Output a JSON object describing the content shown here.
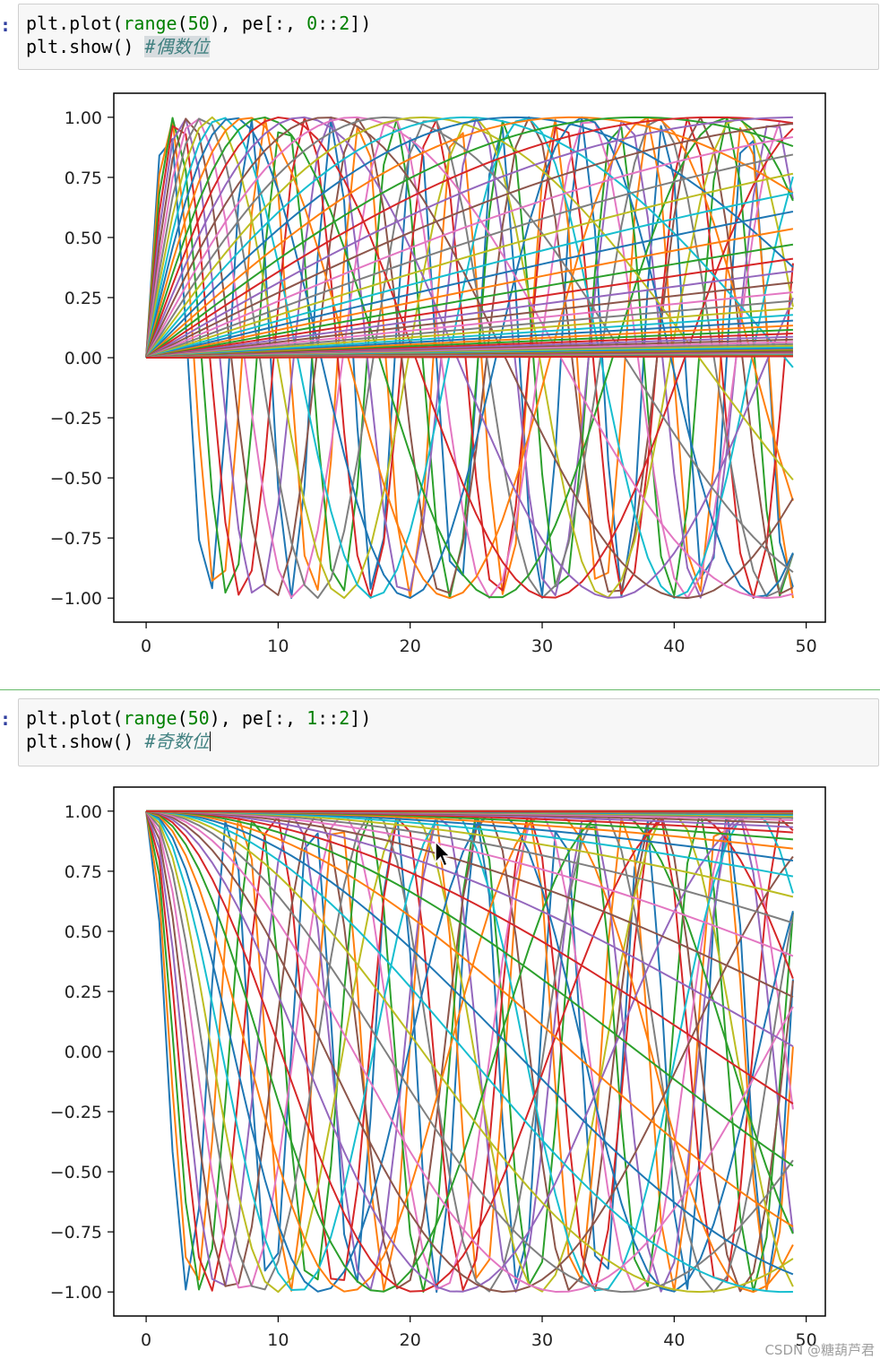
{
  "cells": [
    {
      "prompt": ":",
      "code": {
        "line1": {
          "p1": "plt.plot(",
          "builtin": "range",
          "p2": "(",
          "n1": "50",
          "p3": "), pe[:, ",
          "n2": "0",
          "p4": "::",
          "n3": "2",
          "p5": "])"
        },
        "line2": {
          "p1": "plt.show() ",
          "comment": "#偶数位"
        }
      }
    },
    {
      "prompt": ":",
      "code": {
        "line1": {
          "p1": "plt.plot(",
          "builtin": "range",
          "p2": "(",
          "n1": "50",
          "p3": "), pe[:, ",
          "n2": "1",
          "p4": "::",
          "n3": "2",
          "p5": "])"
        },
        "line2": {
          "p1": "plt.show() ",
          "comment": "#奇数位"
        }
      }
    }
  ],
  "chart_data": [
    {
      "type": "line",
      "function": "sin",
      "description_source": "pe[:, 0::2]",
      "x": {
        "start": 0,
        "end": 49,
        "step": 1
      },
      "series_count": 64,
      "xlim": [
        -2.45,
        51.45
      ],
      "ylim": [
        -1.1,
        1.1
      ],
      "xticks": [
        "0",
        "10",
        "20",
        "30",
        "40",
        "50"
      ],
      "yticks": [
        "1.00",
        "0.75",
        "0.50",
        "0.25",
        "0.00",
        "−0.25",
        "−0.50",
        "−0.75",
        "−1.00"
      ],
      "xtick_values": [
        0,
        10,
        20,
        30,
        40,
        50
      ],
      "ytick_values": [
        1,
        0.75,
        0.5,
        0.25,
        0,
        -0.25,
        -0.5,
        -0.75,
        -1
      ],
      "grid": false
    },
    {
      "type": "line",
      "function": "cos",
      "description_source": "pe[:, 1::2]",
      "x": {
        "start": 0,
        "end": 49,
        "step": 1
      },
      "series_count": 64,
      "xlim": [
        -2.45,
        51.45
      ],
      "ylim": [
        -1.1,
        1.1
      ],
      "xticks": [
        "0",
        "10",
        "20",
        "30",
        "40",
        "50"
      ],
      "yticks": [
        "1.00",
        "0.75",
        "0.50",
        "0.25",
        "0.00",
        "−0.25",
        "−0.50",
        "−0.75",
        "−1.00"
      ],
      "xtick_values": [
        0,
        10,
        20,
        30,
        40,
        50
      ],
      "ytick_values": [
        1,
        0.75,
        0.5,
        0.25,
        0,
        -0.25,
        -0.5,
        -0.75,
        -1
      ],
      "grid": false
    }
  ],
  "palette": [
    "#1f77b4",
    "#ff7f0e",
    "#2ca02c",
    "#d62728",
    "#9467bd",
    "#8c564b",
    "#e377c2",
    "#7f7f7f",
    "#bcbd22",
    "#17becf"
  ],
  "watermark": "CSDN @糖葫芦君"
}
